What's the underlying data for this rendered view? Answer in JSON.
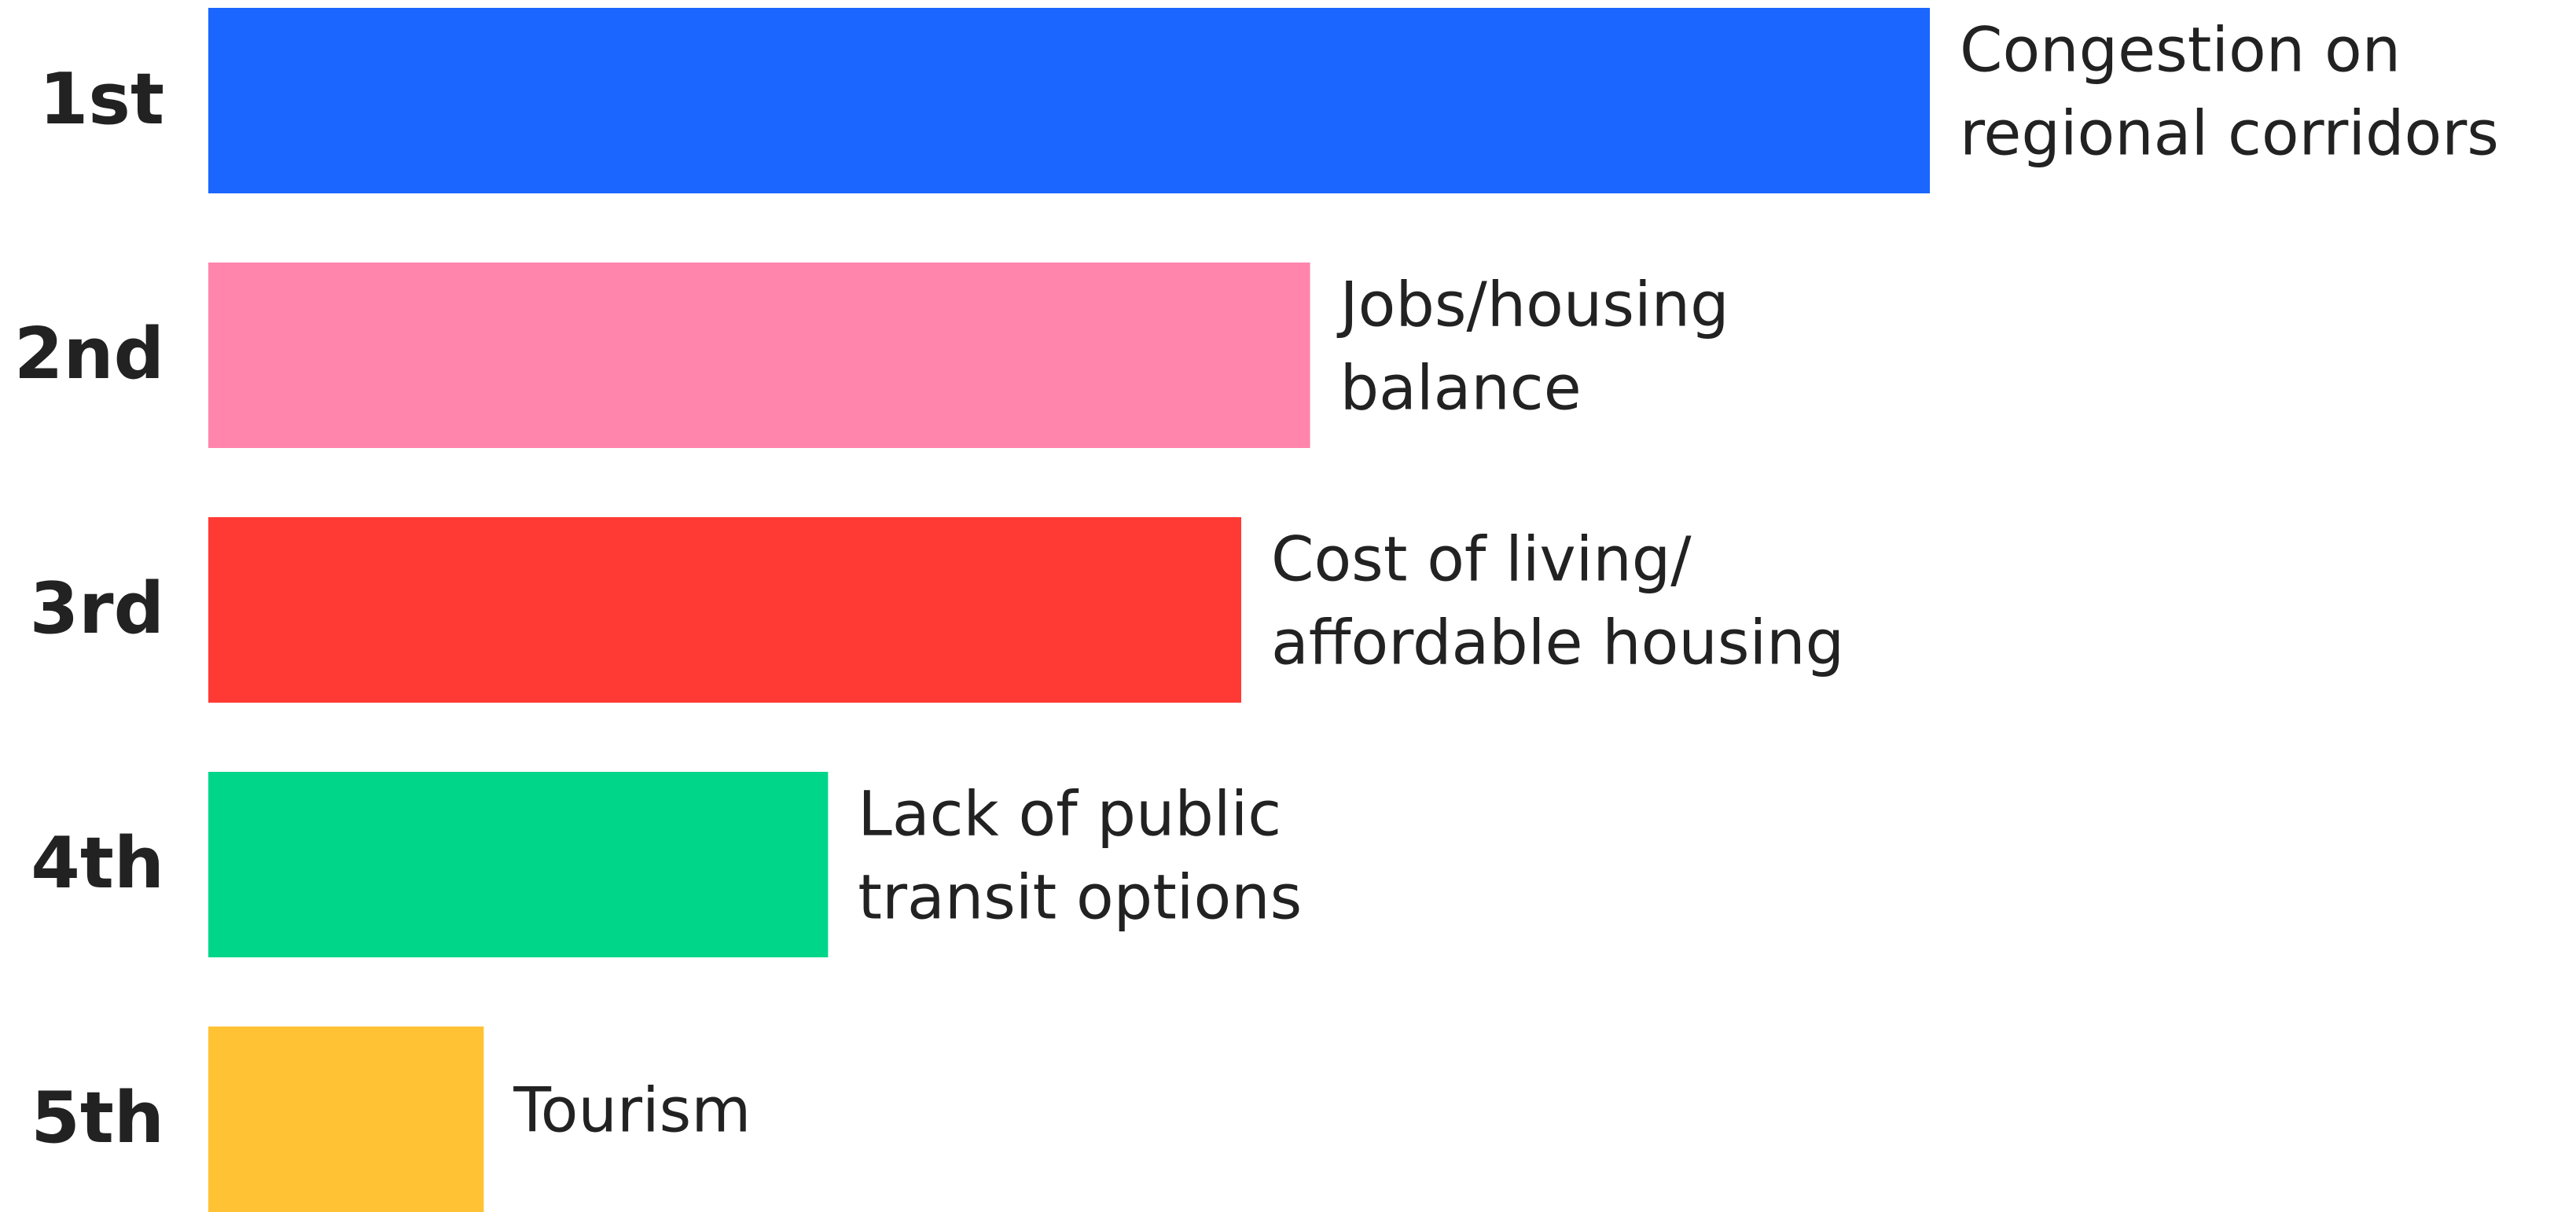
{
  "chart_data": {
    "type": "bar",
    "orientation": "horizontal",
    "categories": [
      "1st",
      "2nd",
      "3rd",
      "4th",
      "5th"
    ],
    "labels": [
      [
        "Congestion on",
        "regional corridors"
      ],
      [
        "Jobs/housing",
        "balance"
      ],
      [
        "Cost of living/",
        "affordable housing"
      ],
      [
        "Lack of public",
        "transit options"
      ],
      [
        "Tourism"
      ]
    ],
    "values": [
      100,
      64,
      60,
      36,
      16
    ],
    "colors": [
      "#1a66ff",
      "#ff85ad",
      "#ff3a35",
      "#00d68a",
      "#ffc234"
    ],
    "xlim": [
      0,
      100
    ]
  }
}
